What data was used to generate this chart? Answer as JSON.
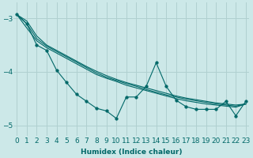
{
  "xlabel": "Humidex (Indice chaleur)",
  "ylabel": "",
  "background_color": "#cce8e8",
  "grid_color": "#b0d0d0",
  "line_color": "#006868",
  "x": [
    0,
    1,
    2,
    3,
    4,
    5,
    6,
    7,
    8,
    9,
    10,
    11,
    12,
    13,
    14,
    15,
    16,
    17,
    18,
    19,
    20,
    21,
    22,
    23
  ],
  "series_smooth": [
    [
      -2.93,
      -3.18,
      -3.42,
      -3.55,
      -3.65,
      -3.75,
      -3.85,
      -3.95,
      -4.05,
      -4.12,
      -4.18,
      -4.25,
      -4.3,
      -4.35,
      -4.4,
      -4.45,
      -4.5,
      -4.54,
      -4.57,
      -4.6,
      -4.62,
      -4.64,
      -4.66,
      -4.6
    ],
    [
      -2.93,
      -3.1,
      -3.38,
      -3.52,
      -3.62,
      -3.72,
      -3.82,
      -3.92,
      -4.02,
      -4.1,
      -4.16,
      -4.22,
      -4.27,
      -4.33,
      -4.38,
      -4.43,
      -4.47,
      -4.51,
      -4.54,
      -4.57,
      -4.6,
      -4.62,
      -4.64,
      -4.6
    ],
    [
      -2.93,
      -3.05,
      -3.33,
      -3.5,
      -3.6,
      -3.7,
      -3.8,
      -3.9,
      -3.99,
      -4.07,
      -4.14,
      -4.2,
      -4.25,
      -4.3,
      -4.35,
      -4.4,
      -4.45,
      -4.49,
      -4.52,
      -4.55,
      -4.58,
      -4.6,
      -4.62,
      -4.6
    ]
  ],
  "series_jagged": [
    -2.93,
    -3.1,
    -3.5,
    -3.6,
    -3.97,
    -4.2,
    -4.42,
    -4.55,
    -4.68,
    -4.73,
    -4.87,
    -4.47,
    -4.47,
    -4.27,
    -3.83,
    -4.27,
    -4.53,
    -4.65,
    -4.7,
    -4.7,
    -4.7,
    -4.55,
    -4.82,
    -4.55
  ],
  "ylim": [
    -5.2,
    -2.7
  ],
  "yticks": [
    -5,
    -4,
    -3
  ],
  "xlim": [
    -0.3,
    23.3
  ],
  "markersize": 2.5,
  "linewidth": 0.8,
  "tick_fontsize": 6.5
}
